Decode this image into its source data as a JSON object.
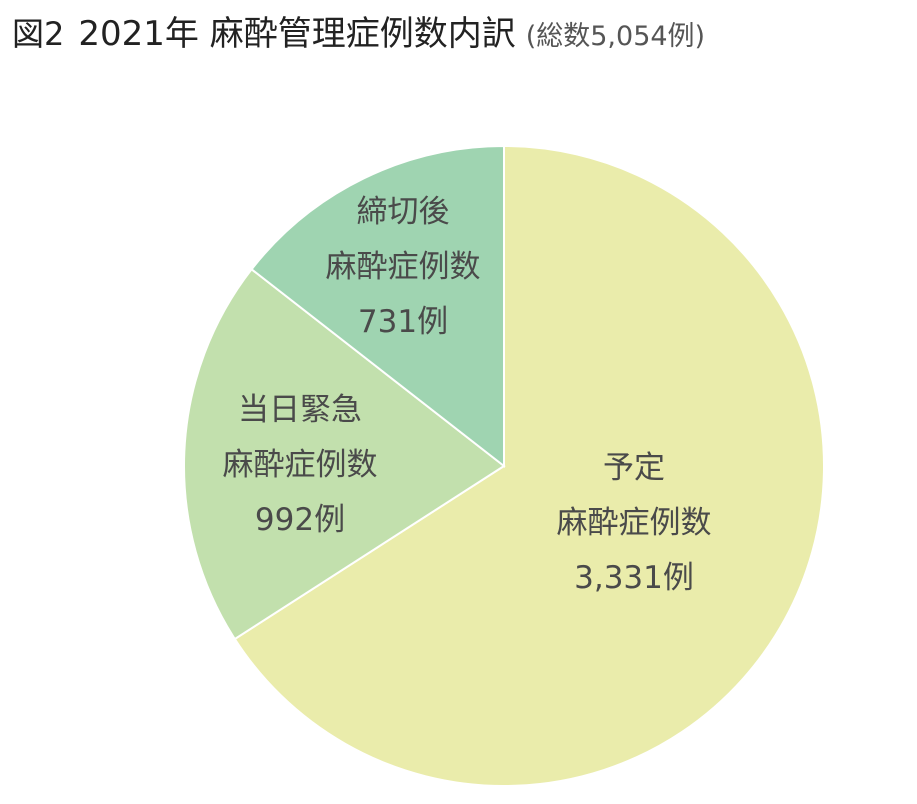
{
  "figure": {
    "number": "図2",
    "title": "2021年 麻酔管理症例数内訳",
    "subtitle": "(総数5,054例)"
  },
  "chart_data": {
    "type": "pie",
    "total": 5054,
    "start_angle_deg": 0,
    "direction": "clockwise",
    "legend": "none",
    "slices": [
      {
        "name": "予定",
        "value": 3331,
        "color": "#eaecab",
        "label_lines": [
          "予定",
          "麻酔症例数",
          "3,331例"
        ]
      },
      {
        "name": "当日緊急",
        "value": 992,
        "color": "#c2e0ad",
        "label_lines": [
          "当日緊急",
          "麻酔症例数",
          "992例"
        ]
      },
      {
        "name": "締切後",
        "value": 731,
        "color": "#9fd4b1",
        "label_lines": [
          "締切後",
          "麻酔症例数",
          "731例"
        ]
      }
    ]
  }
}
